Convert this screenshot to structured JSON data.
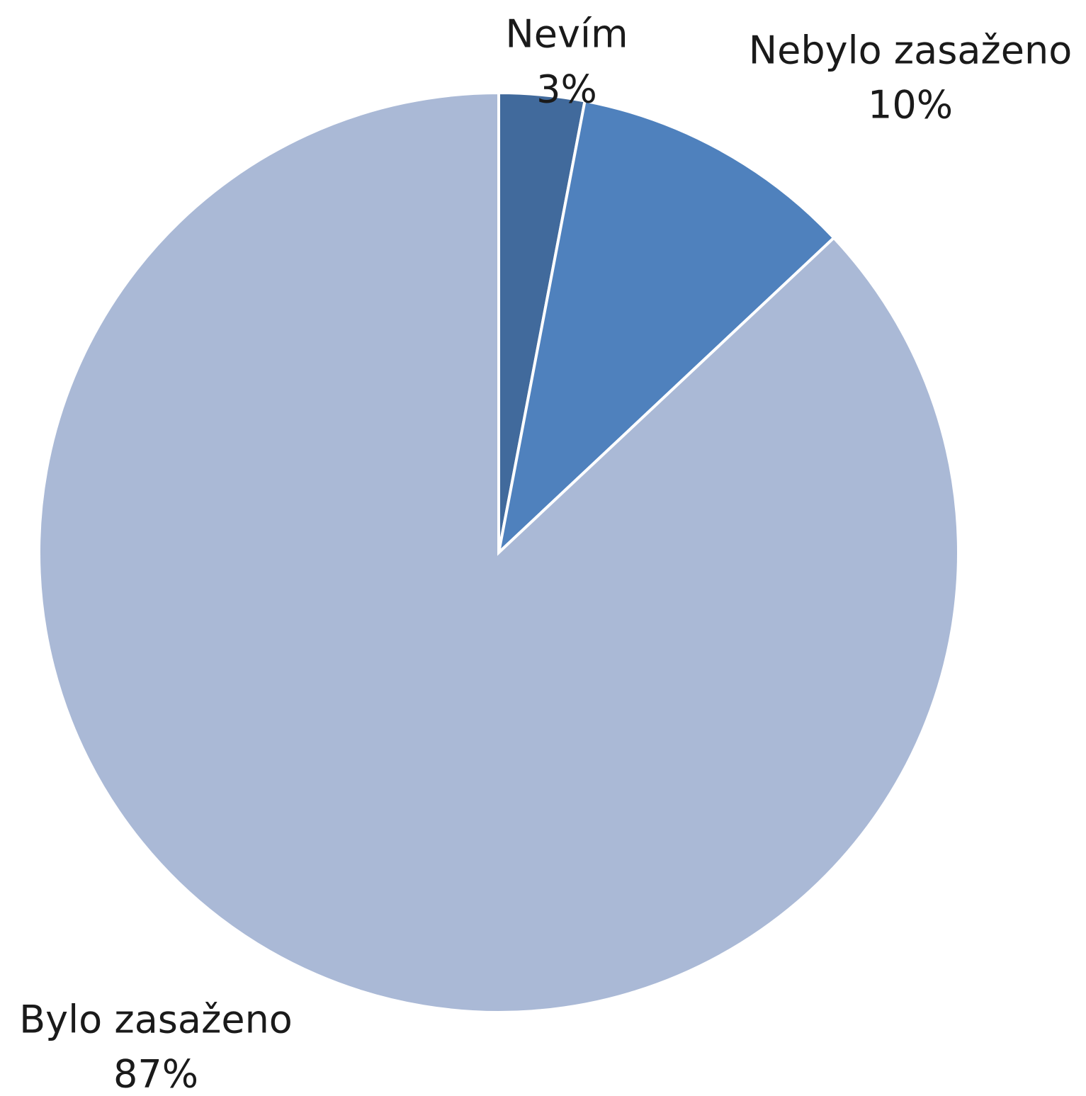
{
  "chart_data": {
    "type": "pie",
    "categories": [
      "Nevím",
      "Nebylo zasaženo",
      "Bylo zasaženo"
    ],
    "values": [
      3,
      10,
      87
    ],
    "value_labels": [
      "3%",
      "10%",
      "87%"
    ],
    "colors": [
      "#416a9c",
      "#4f81bd",
      "#aab9d6"
    ]
  }
}
